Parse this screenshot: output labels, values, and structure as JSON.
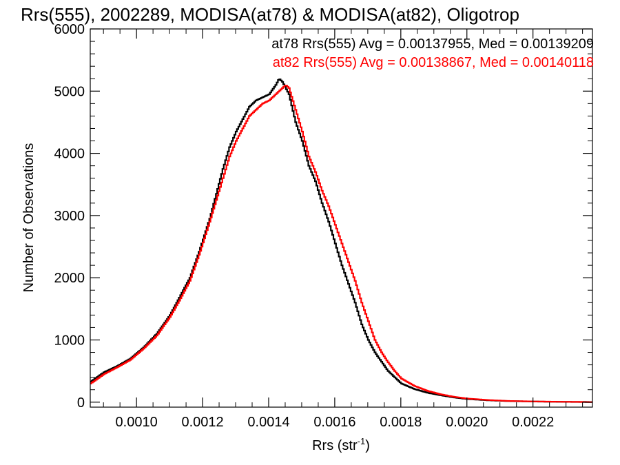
{
  "chart_data": {
    "type": "line",
    "title": "Rrs(555), 2002289, MODISA(at78) & MODISA(at82), Oligotrop",
    "xlabel": "Rrs (str",
    "xlabel_sup": "-1",
    "xlabel_close": ")",
    "ylabel": "Number of Observations",
    "xlim": [
      0.00086,
      0.00238
    ],
    "ylim": [
      -80,
      6000
    ],
    "x_ticks": [
      {
        "value": 0.001,
        "label": "0.0010"
      },
      {
        "value": 0.0012,
        "label": "0.0012"
      },
      {
        "value": 0.0014,
        "label": "0.0014"
      },
      {
        "value": 0.0016,
        "label": "0.0016"
      },
      {
        "value": 0.0018,
        "label": "0.0018"
      },
      {
        "value": 0.002,
        "label": "0.0020"
      },
      {
        "value": 0.0022,
        "label": "0.0022"
      }
    ],
    "y_ticks": [
      {
        "value": 0,
        "label": "0"
      },
      {
        "value": 1000,
        "label": "1000"
      },
      {
        "value": 2000,
        "label": "2000"
      },
      {
        "value": 3000,
        "label": "3000"
      },
      {
        "value": 4000,
        "label": "4000"
      },
      {
        "value": 5000,
        "label": "5000"
      },
      {
        "value": 6000,
        "label": "6000"
      }
    ],
    "grid": false,
    "legend_position": "top-right",
    "series": [
      {
        "name": "at78",
        "color": "#000000",
        "label": "at78 Rrs(555) Avg = 0.00137955, Med = 0.00139209",
        "x": [
          0.00086,
          0.0009,
          0.00094,
          0.00098,
          0.00102,
          0.00106,
          0.0011,
          0.00113,
          0.00116,
          0.00119,
          0.00122,
          0.00124,
          0.00126,
          0.00128,
          0.0013,
          0.00132,
          0.00134,
          0.00136,
          0.00138,
          0.0014,
          0.00142,
          0.00143,
          0.00144,
          0.00145,
          0.00146,
          0.00148,
          0.0015,
          0.00152,
          0.00154,
          0.00156,
          0.00158,
          0.0016,
          0.00162,
          0.00164,
          0.00166,
          0.00168,
          0.0017,
          0.00172,
          0.00174,
          0.00176,
          0.00178,
          0.0018,
          0.00184,
          0.00188,
          0.00192,
          0.00196,
          0.002,
          0.00206,
          0.00212,
          0.0022,
          0.0023,
          0.00238
        ],
        "y": [
          330,
          480,
          580,
          700,
          880,
          1100,
          1400,
          1700,
          2000,
          2450,
          2950,
          3350,
          3750,
          4100,
          4350,
          4550,
          4750,
          4850,
          4900,
          4950,
          5100,
          5200,
          5150,
          5050,
          4950,
          4500,
          4200,
          3800,
          3550,
          3200,
          2900,
          2550,
          2200,
          1900,
          1600,
          1250,
          1000,
          800,
          650,
          500,
          400,
          300,
          210,
          150,
          110,
          75,
          50,
          30,
          18,
          10,
          4,
          2
        ]
      },
      {
        "name": "at82",
        "color": "#ff0000",
        "label": "at82 Rrs(555) Avg = 0.00138867, Med = 0.00140118",
        "x": [
          0.00086,
          0.0009,
          0.00094,
          0.00098,
          0.00102,
          0.00106,
          0.0011,
          0.00113,
          0.00116,
          0.00119,
          0.00122,
          0.00124,
          0.00126,
          0.00128,
          0.0013,
          0.00132,
          0.00134,
          0.00136,
          0.00138,
          0.0014,
          0.00142,
          0.00143,
          0.00144,
          0.00145,
          0.00146,
          0.00148,
          0.0015,
          0.00152,
          0.00154,
          0.00156,
          0.00158,
          0.0016,
          0.00162,
          0.00164,
          0.00166,
          0.00168,
          0.0017,
          0.00172,
          0.00174,
          0.00176,
          0.00178,
          0.0018,
          0.00184,
          0.00188,
          0.00192,
          0.00196,
          0.002,
          0.00206,
          0.00212,
          0.0022,
          0.0023,
          0.00238
        ],
        "y": [
          300,
          450,
          560,
          680,
          860,
          1070,
          1370,
          1650,
          1950,
          2400,
          2900,
          3250,
          3600,
          3950,
          4200,
          4400,
          4600,
          4700,
          4800,
          4850,
          4950,
          5000,
          5050,
          5100,
          5050,
          4700,
          4350,
          3950,
          3700,
          3400,
          3150,
          2850,
          2550,
          2250,
          1950,
          1600,
          1300,
          1000,
          800,
          640,
          500,
          380,
          260,
          180,
          125,
          85,
          58,
          35,
          20,
          11,
          5,
          2
        ]
      }
    ]
  }
}
